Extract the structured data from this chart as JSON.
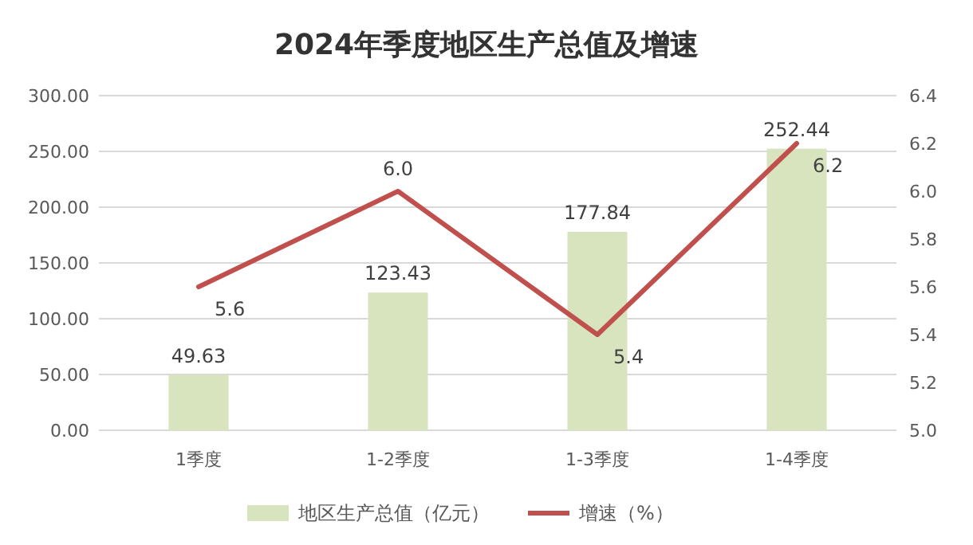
{
  "chart_data": {
    "type": "bar",
    "title": "2024年季度地区生产总值及增速",
    "categories": [
      "1季度",
      "1-2季度",
      "1-3季度",
      "1-4季度"
    ],
    "series": [
      {
        "name": "地区生产总值（亿元）",
        "color": "#d7e4bd",
        "values": [
          49.63,
          123.43,
          177.84,
          252.44
        ],
        "value_labels": [
          "49.63",
          "123.43",
          "177.84",
          "252.44"
        ]
      },
      {
        "name": "增速（%）",
        "type": "line",
        "axis": "y2",
        "color": "#c0504d",
        "values": [
          5.6,
          6.0,
          5.4,
          6.2
        ],
        "value_labels": [
          "5.6",
          "6.0",
          "5.4",
          "6.2"
        ]
      }
    ],
    "ylim": [
      0,
      300
    ],
    "yticks": [
      {
        "value": 0,
        "label": "0.00"
      },
      {
        "value": 50,
        "label": "50.00"
      },
      {
        "value": 100,
        "label": "100.00"
      },
      {
        "value": 150,
        "label": "150.00"
      },
      {
        "value": 200,
        "label": "200.00"
      },
      {
        "value": 250,
        "label": "250.00"
      },
      {
        "value": 300,
        "label": "300.00"
      }
    ],
    "y2lim": [
      5.0,
      6.4
    ],
    "y2ticks": [
      {
        "value": 5,
        "label": "5.0"
      },
      5.2,
      5.4,
      5.6,
      5.8,
      {
        "value": 6,
        "label": "6.0"
      },
      6.2,
      6.4
    ],
    "grid": "y",
    "legend": "bottom"
  }
}
